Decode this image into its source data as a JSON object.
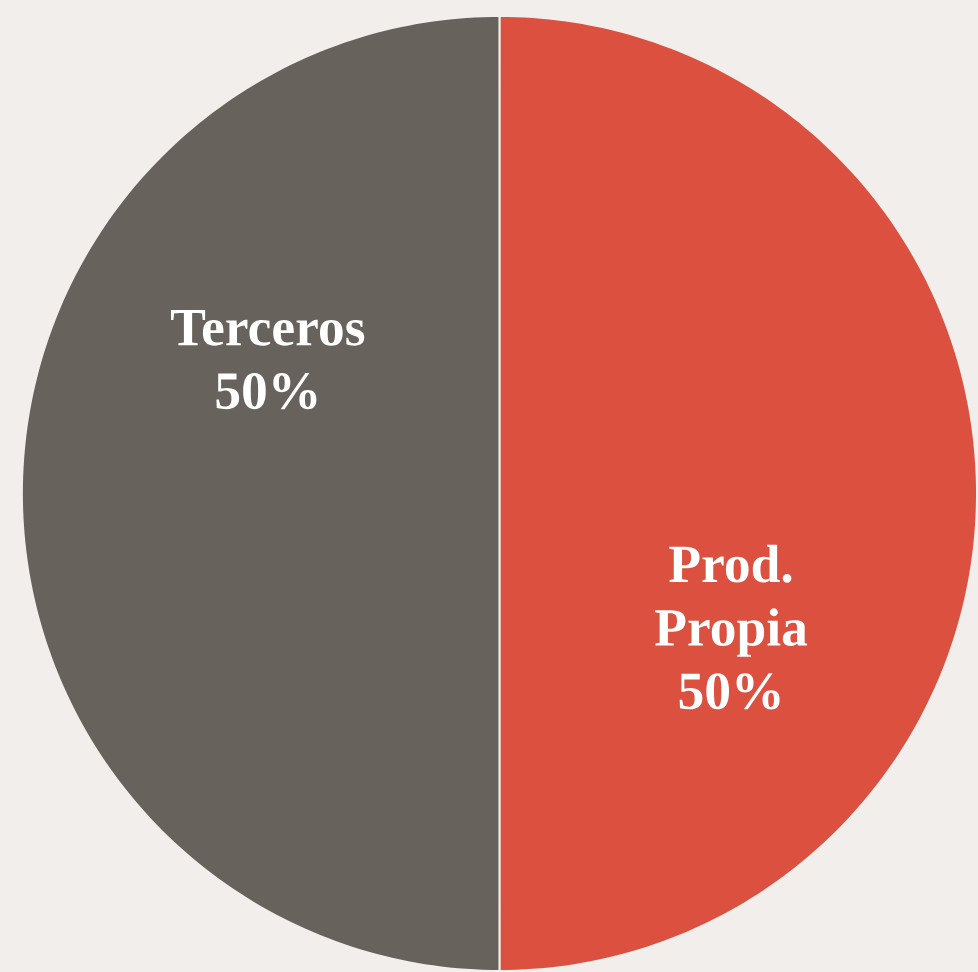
{
  "chart_data": {
    "type": "pie",
    "categories": [
      "Prod. Propia",
      "Terceros"
    ],
    "values": [
      50,
      50
    ],
    "value_labels": [
      "50%",
      "50%"
    ],
    "colors": [
      "#dc5040",
      "#67625c"
    ]
  }
}
